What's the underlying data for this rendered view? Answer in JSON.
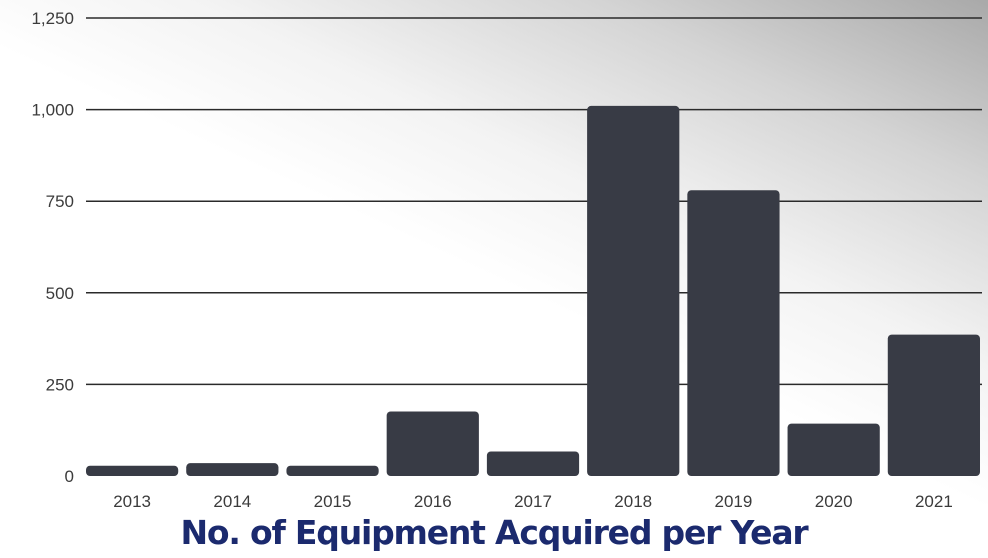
{
  "chart_data": {
    "type": "bar",
    "title": "No. of Equipment Acquired per Year",
    "categories": [
      "2013",
      "2014",
      "2015",
      "2016",
      "2017",
      "2018",
      "2019",
      "2020",
      "2021"
    ],
    "values": [
      28,
      35,
      28,
      176,
      67,
      1010,
      780,
      143,
      386
    ],
    "ylim": [
      0,
      1250
    ],
    "yticks": [
      0,
      250,
      500,
      750,
      1000,
      1250
    ],
    "ytick_labels": [
      "0",
      "250",
      "500",
      "750",
      "1,000",
      "1,250"
    ],
    "grid": true,
    "bar_color": "#383b45",
    "grid_color": "#2a2a2a",
    "title_color": "#1b2a6e"
  }
}
